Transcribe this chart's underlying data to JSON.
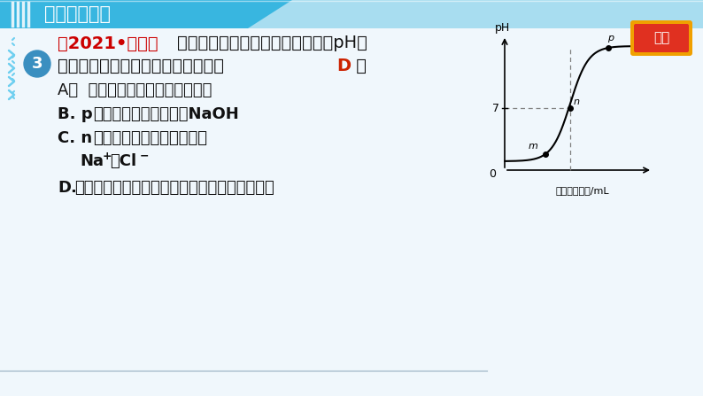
{
  "bg_color": "#f0f7fc",
  "header_bg_main": "#38b6e0",
  "header_bg_light": "#a8ddf0",
  "header_text": "阶段核心综合",
  "header_text_color": "#ffffff",
  "circle_color": "#3a8fc0",
  "circle_text": "3",
  "question_prefix_color": "#cc0000",
  "question_prefix": "【2021•潍坊】",
  "question_line1": "稀盐酸与氢氧化钠溶液反应时溶液pH的",
  "question_line2": "变化如图所示。下列说法正确的是（ D ）",
  "answer_D_color": "#cc2200",
  "option_A": "A．  该反应的基本类型是中和反应",
  "option_B_bold": "B. p",
  "option_B_rest": "点所示溶液中的溶质为NaOH",
  "option_C_bold": "C. n",
  "option_C_rest": "点表示的溶液中的微粒只有",
  "option_C_line2": "Na",
  "option_C_sup1": "+",
  "option_C_mid": "和Cl",
  "option_C_sup2": "−",
  "option_D_bold": "D.",
  "option_D_rest": "该图所对应操作是将氢氧化钠溶液滴入稀盐酸中",
  "return_btn_main": "#e03020",
  "return_btn_gold": "#f0a000",
  "return_btn_text": "返回",
  "return_btn_text_color": "#ffffff",
  "graph_xlabel": "滴入溶液体积/mL",
  "graph_ylabel": "pH",
  "wave_color": "#6ecff0",
  "bottom_line_color": "#c0d0dc",
  "vert_line_colors": [
    "#7dd4f0",
    "#7dd4f0",
    "#7dd4f0",
    "#7dd4f0"
  ]
}
